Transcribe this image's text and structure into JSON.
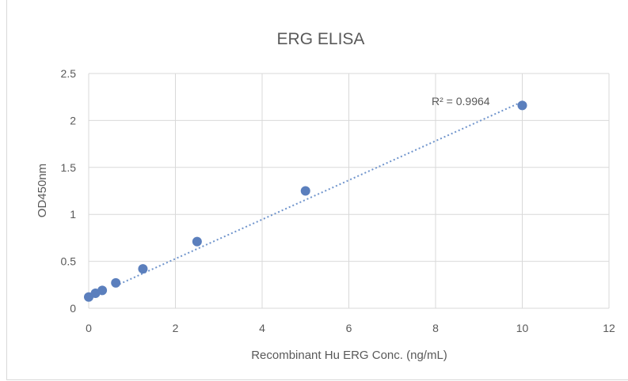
{
  "chart_data": {
    "type": "scatter",
    "title": "ERG ELISA",
    "xlabel": "Recombinant Hu ERG Conc. (ng/mL)",
    "ylabel": "OD450nm",
    "xlim": [
      0,
      12
    ],
    "ylim": [
      0,
      2.5
    ],
    "xticks": [
      "0",
      "2",
      "4",
      "6",
      "8",
      "10",
      "12"
    ],
    "yticks": [
      "0",
      "0.5",
      "1",
      "1.5",
      "2",
      "2.5"
    ],
    "grid": true,
    "points": [
      {
        "x": 0,
        "y": 0.12
      },
      {
        "x": 0.156,
        "y": 0.16
      },
      {
        "x": 0.3125,
        "y": 0.19
      },
      {
        "x": 0.625,
        "y": 0.27
      },
      {
        "x": 1.25,
        "y": 0.42
      },
      {
        "x": 2.5,
        "y": 0.71
      },
      {
        "x": 5,
        "y": 1.25
      },
      {
        "x": 10,
        "y": 2.16
      }
    ],
    "trendline": {
      "type": "linear",
      "from": {
        "x": 0.625,
        "y": 0.24
      },
      "to": {
        "x": 10,
        "y": 2.2
      },
      "label": "R² = 0.9964"
    },
    "colors": {
      "marker": "#5b7fbd",
      "trendline": "#6f94cc",
      "grid": "#d9d9d9",
      "text": "#595959"
    }
  }
}
